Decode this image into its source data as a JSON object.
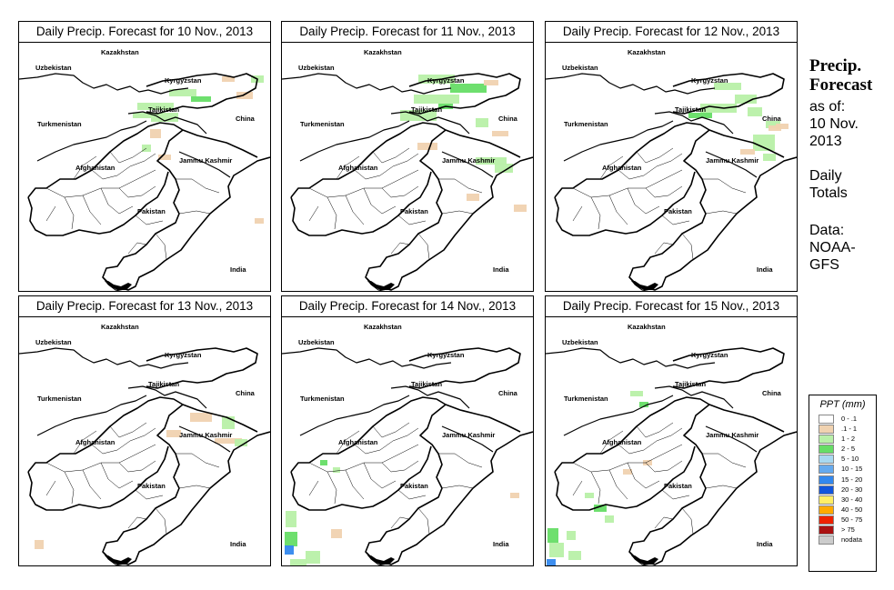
{
  "panels": [
    {
      "title": "Daily Precip. Forecast for  10 Nov., 2013"
    },
    {
      "title": "Daily Precip. Forecast for  11 Nov., 2013"
    },
    {
      "title": "Daily Precip. Forecast for  12 Nov., 2013"
    },
    {
      "title": "Daily Precip. Forecast for  13 Nov., 2013"
    },
    {
      "title": "Daily Precip. Forecast for  14 Nov., 2013"
    },
    {
      "title": "Daily Precip. Forecast for  15 Nov., 2013"
    }
  ],
  "map_labels": {
    "kazakhstan": "Kazakhstan",
    "uzbekistan": "Uzbekistan",
    "kyrgyzstan": "Kyrgyzstan",
    "tajikistan": "Tajikistan",
    "turkmenistan": "Turkmenistan",
    "china": "China",
    "jammu_kashmir": "Jammu Kashmir",
    "afghanistan": "Afghanistan",
    "pakistan": "Pakistan",
    "india": "India"
  },
  "sidebar": {
    "title_line1": "Precip.",
    "title_line2": "Forecast",
    "asof_line1": "as of:",
    "asof_line2": "10 Nov.",
    "asof_line3": "2013",
    "totals_line1": "Daily",
    "totals_line2": "Totals",
    "data_line1": "Data:",
    "data_line2": "NOAA-",
    "data_line3": "GFS"
  },
  "legend": {
    "title": "PPT (mm)",
    "items": [
      {
        "label": "0 - .1",
        "color": "#ffffff"
      },
      {
        "label": ".1 - 1",
        "color": "#f0d2b0"
      },
      {
        "label": "1 - 2",
        "color": "#b8f0a8"
      },
      {
        "label": "2 - 5",
        "color": "#66dd66"
      },
      {
        "label": "5 - 10",
        "color": "#a8d8f0"
      },
      {
        "label": "10 - 15",
        "color": "#66aaee"
      },
      {
        "label": "15 - 20",
        "color": "#3388ee"
      },
      {
        "label": "20 - 30",
        "color": "#1155dd"
      },
      {
        "label": "30 - 40",
        "color": "#ffee66"
      },
      {
        "label": "40 - 50",
        "color": "#ffaa00"
      },
      {
        "label": "50 - 75",
        "color": "#ee2200"
      },
      {
        "label": "> 75",
        "color": "#aa1111"
      },
      {
        "label": "nodata",
        "color": "#cccccc"
      }
    ]
  }
}
